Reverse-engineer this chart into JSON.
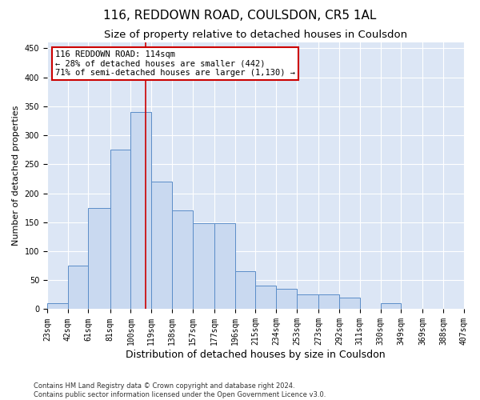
{
  "title": "116, REDDOWN ROAD, COULSDON, CR5 1AL",
  "subtitle": "Size of property relative to detached houses in Coulsdon",
  "xlabel": "Distribution of detached houses by size in Coulsdon",
  "ylabel": "Number of detached properties",
  "bar_values": [
    10,
    75,
    175,
    275,
    340,
    220,
    170,
    148,
    148,
    65,
    40,
    35,
    25,
    25,
    20,
    0,
    10,
    0,
    0,
    0
  ],
  "bin_edges": [
    23,
    42,
    61,
    81,
    100,
    119,
    138,
    157,
    177,
    196,
    215,
    234,
    253,
    273,
    292,
    311,
    330,
    349,
    369,
    388,
    407
  ],
  "bin_labels": [
    "23sqm",
    "42sqm",
    "61sqm",
    "81sqm",
    "100sqm",
    "119sqm",
    "138sqm",
    "157sqm",
    "177sqm",
    "196sqm",
    "215sqm",
    "234sqm",
    "253sqm",
    "273sqm",
    "292sqm",
    "311sqm",
    "330sqm",
    "349sqm",
    "369sqm",
    "388sqm",
    "407sqm"
  ],
  "bar_color": "#c9d9f0",
  "bar_edge_color": "#5b8dc8",
  "vline_x": 114,
  "vline_color": "#cc0000",
  "annotation_title": "116 REDDOWN ROAD: 114sqm",
  "annotation_line1": "← 28% of detached houses are smaller (442)",
  "annotation_line2": "71% of semi-detached houses are larger (1,130) →",
  "annotation_box_color": "#ffffff",
  "annotation_border_color": "#cc0000",
  "ylim": [
    0,
    460
  ],
  "yticks": [
    0,
    50,
    100,
    150,
    200,
    250,
    300,
    350,
    400,
    450
  ],
  "footer_line1": "Contains HM Land Registry data © Crown copyright and database right 2024.",
  "footer_line2": "Contains public sector information licensed under the Open Government Licence v3.0.",
  "background_color": "#dce6f5",
  "fig_background": "#ffffff",
  "title_fontsize": 11,
  "subtitle_fontsize": 9.5,
  "xlabel_fontsize": 9,
  "ylabel_fontsize": 8,
  "tick_fontsize": 7,
  "annotation_fontsize": 7.5,
  "footer_fontsize": 6
}
